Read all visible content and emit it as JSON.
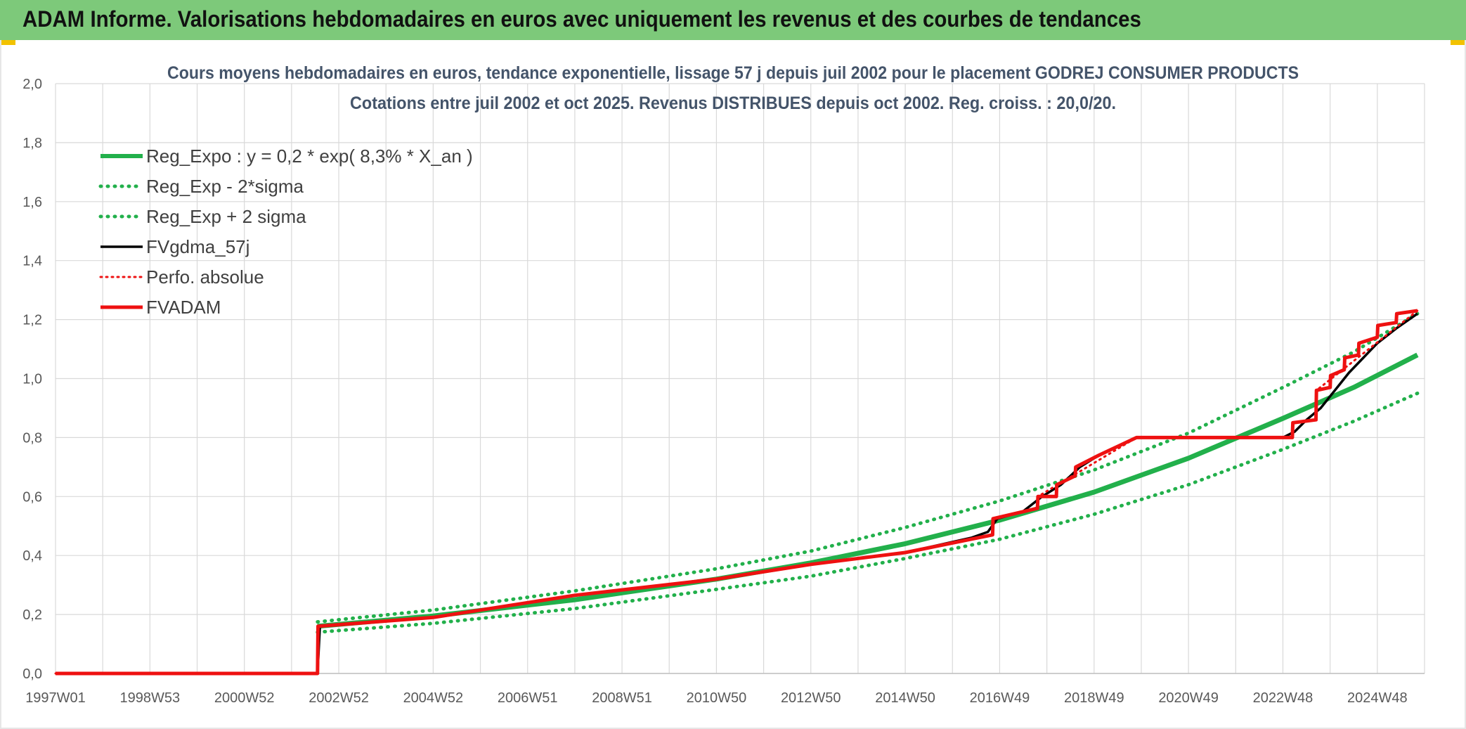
{
  "banner": {
    "title": "ADAM Informe. Valorisations hebdomadaires en euros avec uniquement les revenus et des courbes de tendances"
  },
  "colors": {
    "banner_bg": "#7dc97a",
    "green": "#22b04b",
    "red": "#ee1111",
    "black": "#000000",
    "grid": "#d9d9d9"
  },
  "chart_data": {
    "type": "line",
    "title": "Cours moyens hebdomadaires en euros, tendance exponentielle, lissage 57 j depuis juil 2002 pour le placement GODREJ CONSUMER PRODUCTS",
    "subtitle": "Cotations entre juil 2002 et oct 2025. Revenus DISTRIBUES depuis oct 2002. Reg. croiss. : 20,0/20.",
    "xlabel": "",
    "ylabel": "",
    "x_range": [
      1997.0,
      2026.0
    ],
    "ylim": [
      0,
      2.0
    ],
    "y_ticks": [
      0.0,
      0.2,
      0.4,
      0.6,
      0.8,
      1.0,
      1.2,
      1.4,
      1.6,
      1.8,
      2.0
    ],
    "y_tick_labels": [
      "0,0",
      "0,2",
      "0,4",
      "0,6",
      "0,8",
      "1,0",
      "1,2",
      "1,4",
      "1,6",
      "1,8",
      "2,0"
    ],
    "x_ticks": [
      {
        "label": "1997W01",
        "x": 1997.0
      },
      {
        "label": "1998W53",
        "x": 1999.0
      },
      {
        "label": "2000W52",
        "x": 2001.0
      },
      {
        "label": "2002W52",
        "x": 2003.0
      },
      {
        "label": "2004W52",
        "x": 2005.0
      },
      {
        "label": "2006W51",
        "x": 2007.0
      },
      {
        "label": "2008W51",
        "x": 2009.0
      },
      {
        "label": "2010W50",
        "x": 2011.0
      },
      {
        "label": "2012W50",
        "x": 2013.0
      },
      {
        "label": "2014W50",
        "x": 2015.0
      },
      {
        "label": "2016W49",
        "x": 2017.0
      },
      {
        "label": "2018W49",
        "x": 2019.0
      },
      {
        "label": "2020W49",
        "x": 2021.0
      },
      {
        "label": "2022W48",
        "x": 2023.0
      },
      {
        "label": "2024W48",
        "x": 2025.0
      }
    ],
    "legend_position": "top-left",
    "grid": true,
    "series": [
      {
        "name": "Reg_Expo : y = 0,2 * exp( 8,3% *  X_an )",
        "color": "#22b04b",
        "style": "solid",
        "points": [
          [
            2002.55,
            0.16
          ],
          [
            2005.0,
            0.195
          ],
          [
            2008.0,
            0.25
          ],
          [
            2011.0,
            0.32
          ],
          [
            2013.0,
            0.375
          ],
          [
            2015.0,
            0.44
          ],
          [
            2017.0,
            0.52
          ],
          [
            2019.0,
            0.615
          ],
          [
            2021.0,
            0.73
          ],
          [
            2023.0,
            0.865
          ],
          [
            2024.5,
            0.97
          ],
          [
            2025.85,
            1.08
          ]
        ]
      },
      {
        "name": "Reg_Exp - 2*sigma",
        "color": "#22b04b",
        "style": "dotted",
        "points": [
          [
            2002.55,
            0.14
          ],
          [
            2005.0,
            0.17
          ],
          [
            2008.0,
            0.22
          ],
          [
            2011.0,
            0.285
          ],
          [
            2013.0,
            0.33
          ],
          [
            2015.0,
            0.39
          ],
          [
            2017.0,
            0.455
          ],
          [
            2019.0,
            0.54
          ],
          [
            2021.0,
            0.64
          ],
          [
            2023.0,
            0.76
          ],
          [
            2024.5,
            0.855
          ],
          [
            2025.85,
            0.95
          ]
        ]
      },
      {
        "name": "Reg_Exp + 2 sigma",
        "color": "#22b04b",
        "style": "dotted",
        "points": [
          [
            2002.55,
            0.175
          ],
          [
            2005.0,
            0.215
          ],
          [
            2008.0,
            0.28
          ],
          [
            2011.0,
            0.355
          ],
          [
            2013.0,
            0.415
          ],
          [
            2015.0,
            0.495
          ],
          [
            2017.0,
            0.585
          ],
          [
            2019.0,
            0.69
          ],
          [
            2021.0,
            0.815
          ],
          [
            2023.0,
            0.97
          ],
          [
            2024.5,
            1.09
          ],
          [
            2025.85,
            1.22
          ]
        ]
      },
      {
        "name": "FVgdma_57j",
        "color": "#000000",
        "style": "solid",
        "points": [
          [
            1997.0,
            0.0
          ],
          [
            2002.55,
            0.0
          ],
          [
            2002.6,
            0.16
          ],
          [
            2005.0,
            0.19
          ],
          [
            2008.0,
            0.265
          ],
          [
            2011.0,
            0.32
          ],
          [
            2013.0,
            0.37
          ],
          [
            2015.0,
            0.41
          ],
          [
            2016.4,
            0.46
          ],
          [
            2016.75,
            0.48
          ],
          [
            2016.95,
            0.525
          ],
          [
            2017.5,
            0.55
          ],
          [
            2017.9,
            0.6
          ],
          [
            2018.3,
            0.64
          ],
          [
            2018.7,
            0.7
          ],
          [
            2019.1,
            0.74
          ],
          [
            2019.5,
            0.77
          ],
          [
            2019.9,
            0.8
          ],
          [
            2023.0,
            0.8
          ],
          [
            2023.25,
            0.82
          ],
          [
            2023.5,
            0.86
          ],
          [
            2023.8,
            0.9
          ],
          [
            2024.1,
            0.96
          ],
          [
            2024.4,
            1.02
          ],
          [
            2024.7,
            1.07
          ],
          [
            2025.0,
            1.12
          ],
          [
            2025.4,
            1.17
          ],
          [
            2025.85,
            1.22
          ]
        ]
      },
      {
        "name": "Perfo. absolue",
        "color": "#ee1111",
        "style": "dotted",
        "points": [
          [
            1997.0,
            0.0
          ],
          [
            2002.55,
            0.0
          ],
          [
            2002.56,
            0.16
          ],
          [
            2005.0,
            0.19
          ],
          [
            2008.0,
            0.265
          ],
          [
            2011.0,
            0.32
          ],
          [
            2013.0,
            0.37
          ],
          [
            2015.0,
            0.41
          ],
          [
            2016.85,
            0.47
          ],
          [
            2016.86,
            0.525
          ],
          [
            2017.8,
            0.56
          ],
          [
            2017.81,
            0.6
          ],
          [
            2019.9,
            0.8
          ],
          [
            2023.2,
            0.8
          ],
          [
            2023.21,
            0.85
          ],
          [
            2023.7,
            0.86
          ],
          [
            2023.71,
            0.96
          ],
          [
            2025.85,
            1.23
          ]
        ]
      },
      {
        "name": "FVADAM",
        "color": "#ee1111",
        "style": "solid",
        "points": [
          [
            1997.0,
            0.0
          ],
          [
            2002.55,
            0.0
          ],
          [
            2002.56,
            0.16
          ],
          [
            2005.0,
            0.19
          ],
          [
            2008.0,
            0.265
          ],
          [
            2011.0,
            0.32
          ],
          [
            2013.0,
            0.37
          ],
          [
            2015.0,
            0.41
          ],
          [
            2016.85,
            0.47
          ],
          [
            2016.86,
            0.525
          ],
          [
            2017.8,
            0.56
          ],
          [
            2017.81,
            0.6
          ],
          [
            2018.2,
            0.6
          ],
          [
            2018.21,
            0.64
          ],
          [
            2018.6,
            0.67
          ],
          [
            2018.61,
            0.7
          ],
          [
            2019.1,
            0.74
          ],
          [
            2019.5,
            0.77
          ],
          [
            2019.9,
            0.8
          ],
          [
            2023.2,
            0.8
          ],
          [
            2023.21,
            0.85
          ],
          [
            2023.7,
            0.86
          ],
          [
            2023.71,
            0.96
          ],
          [
            2024.0,
            0.97
          ],
          [
            2024.01,
            1.01
          ],
          [
            2024.3,
            1.03
          ],
          [
            2024.31,
            1.07
          ],
          [
            2024.6,
            1.08
          ],
          [
            2024.61,
            1.12
          ],
          [
            2025.0,
            1.14
          ],
          [
            2025.01,
            1.18
          ],
          [
            2025.4,
            1.19
          ],
          [
            2025.41,
            1.22
          ],
          [
            2025.85,
            1.23
          ]
        ]
      }
    ]
  }
}
